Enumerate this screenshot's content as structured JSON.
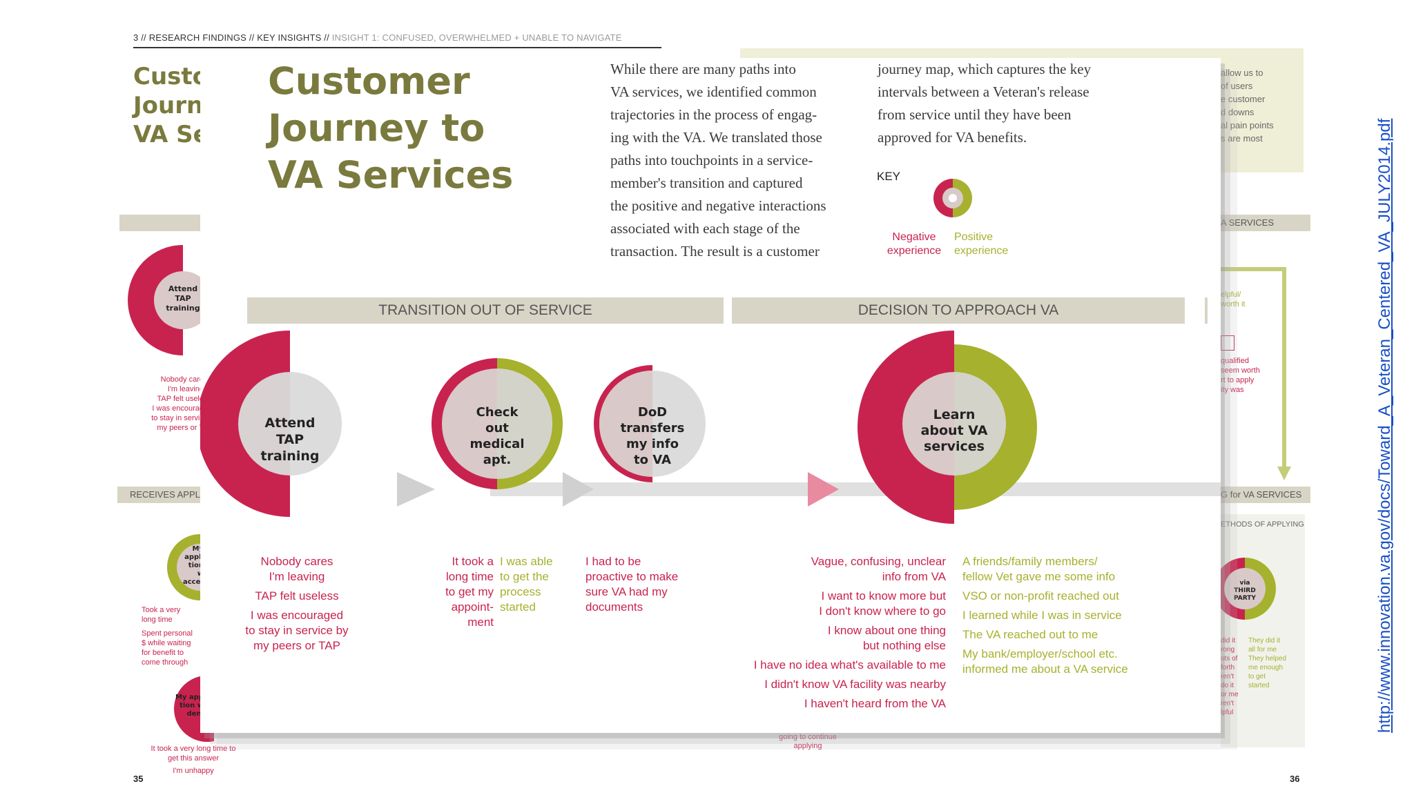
{
  "breadcrumb": {
    "page": "3 //",
    "section": "RESEARCH FINDINGS // KEY INSIGHTS //",
    "insight": "INSIGHT 1: CONFUSED, OVERWHELMED + UNABLE TO NAVIGATE"
  },
  "background_left": {
    "title_lines": [
      "Custo",
      "Journ",
      "VA Se"
    ],
    "circle_label": "Attend TAP training",
    "notes": [
      "Nobody care",
      "I'm leaving",
      "TAP felt usele",
      "I was encourag",
      "to stay in servic",
      "my peers or T"
    ],
    "band": "RECEIVES APPLI",
    "circle2_label": "My appli tion w accep",
    "notes2": [
      "Took a very",
      "long time",
      "Spent personal",
      "$ while waiting",
      "for benefit to",
      "come through"
    ],
    "circle3_label": "My app tion w deni",
    "notes3": [
      "It took a very long time to",
      "get this answer",
      "I'm unhappy"
    ],
    "page_number": "35"
  },
  "background_right": {
    "box_text": [
      "allow us to",
      "of users",
      "e customer",
      "d downs",
      "al pain points",
      "s are most"
    ],
    "band1": "A SERVICES",
    "side_notes1": [
      "elpful/",
      "worth it"
    ],
    "side_notes2": [
      "qualified",
      "seem worth",
      "rt to apply",
      "ity was"
    ],
    "band2": "G for VA SERVICES",
    "sub_band": "ETHODS OF APPLYING",
    "circle_label": "via THIRD PARTY",
    "neg_notes": [
      "did it",
      "rong",
      "ots of",
      "forth",
      "ren't",
      "do it",
      "or me",
      "ren't",
      "lpful"
    ],
    "pos_notes": [
      "They did it",
      "all for me",
      "They helped",
      "me enough",
      "to get",
      "started"
    ],
    "continue_note": [
      "going to continue",
      "applying"
    ],
    "page_number": "36"
  },
  "card": {
    "title_lines": [
      "Customer",
      "Journey to",
      "VA Services"
    ],
    "intro_col1": [
      "While there are many paths into",
      "VA services, we identified common",
      "trajectories in the process of engag-",
      "ing with the VA. We translated those",
      "paths into touchpoints in a service-",
      "member's transition and captured",
      "the positive and negative interactions",
      "associated with each stage of the",
      "transaction. The result is a customer"
    ],
    "intro_col2": [
      "journey map, which captures the key",
      "intervals between a Veteran's release",
      "from service until they have been",
      "approved for VA benefits."
    ],
    "key_label": "KEY",
    "key_negative": [
      "Negative",
      "experience"
    ],
    "key_positive": [
      "Positive",
      "experience"
    ],
    "band_transition": "TRANSITION OUT OF SERVICE",
    "band_decision": "DECISION TO APPROACH VA",
    "stages": [
      {
        "label": [
          "Attend",
          "TAP",
          "training"
        ]
      },
      {
        "label": [
          "Check",
          "out",
          "medical",
          "apt."
        ]
      },
      {
        "label": [
          "DoD",
          "transfers",
          "my info",
          "to VA"
        ]
      },
      {
        "label": [
          "Learn",
          "about VA",
          "services"
        ]
      }
    ],
    "notes_tap": [
      "Nobody cares",
      "I'm leaving",
      "TAP felt useless",
      "I was encouraged",
      "to stay in service by",
      "my peers or TAP"
    ],
    "notes_medical_neg": [
      "It took a",
      "long time",
      "to get my",
      "appoint-",
      "ment"
    ],
    "notes_medical_pos": [
      "I was able",
      "to get the",
      "process",
      "started"
    ],
    "notes_dod_neg": [
      "I had to be",
      "proactive to make",
      "sure VA had my",
      "documents"
    ],
    "notes_learn_neg": [
      "Vague, confusing, unclear",
      "info from VA",
      "I want to know more but",
      "I don't know where to go",
      "I know about one thing",
      "but nothing else",
      "I have no idea what's available to me",
      "I didn't know VA facility was nearby",
      "I haven't heard from the VA"
    ],
    "notes_learn_pos": [
      "A friends/family members/",
      "fellow Vet gave me some info",
      "VSO or non-profit reached out",
      "I learned while I was in service",
      "The VA reached out to me",
      "My bank/employer/school etc.",
      "informed me about a VA service"
    ]
  },
  "source_url": "http://www.innovation.va.gov/docs/Toward_A_Veteran_Centered_VA_JULY2014.pdf",
  "colors": {
    "negative": "#c8234f",
    "positive": "#a6b12e",
    "title": "#7a7a3e",
    "band": "#d8d5c6"
  }
}
